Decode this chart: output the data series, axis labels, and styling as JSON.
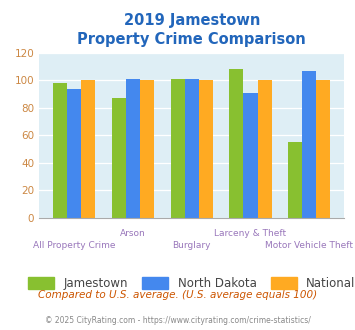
{
  "title_line1": "2019 Jamestown",
  "title_line2": "Property Crime Comparison",
  "categories": [
    "All Property Crime",
    "Arson",
    "Burglary",
    "Larceny & Theft",
    "Motor Vehicle Theft"
  ],
  "jamestown": [
    98,
    87,
    101,
    108,
    55
  ],
  "north_dakota": [
    94,
    101,
    101,
    91,
    107
  ],
  "national": [
    100,
    100,
    100,
    100,
    100
  ],
  "bar_colors": {
    "jamestown": "#88c030",
    "north_dakota": "#4488ee",
    "national": "#ffaa22"
  },
  "ylim": [
    0,
    120
  ],
  "yticks": [
    0,
    20,
    40,
    60,
    80,
    100,
    120
  ],
  "legend_labels": [
    "Jamestown",
    "North Dakota",
    "National"
  ],
  "footnote1": "Compared to U.S. average. (U.S. average equals 100)",
  "footnote2": "© 2025 CityRating.com - https://www.cityrating.com/crime-statistics/",
  "title_color": "#2266bb",
  "ytick_color": "#cc8844",
  "xtick_color_top": "#9977bb",
  "xtick_color_bot": "#9977bb",
  "legend_text_color": "#444444",
  "footnote1_color": "#cc5500",
  "footnote2_color": "#888888",
  "fig_bg_color": "#ffffff",
  "plot_bg_color": "#deeef5"
}
